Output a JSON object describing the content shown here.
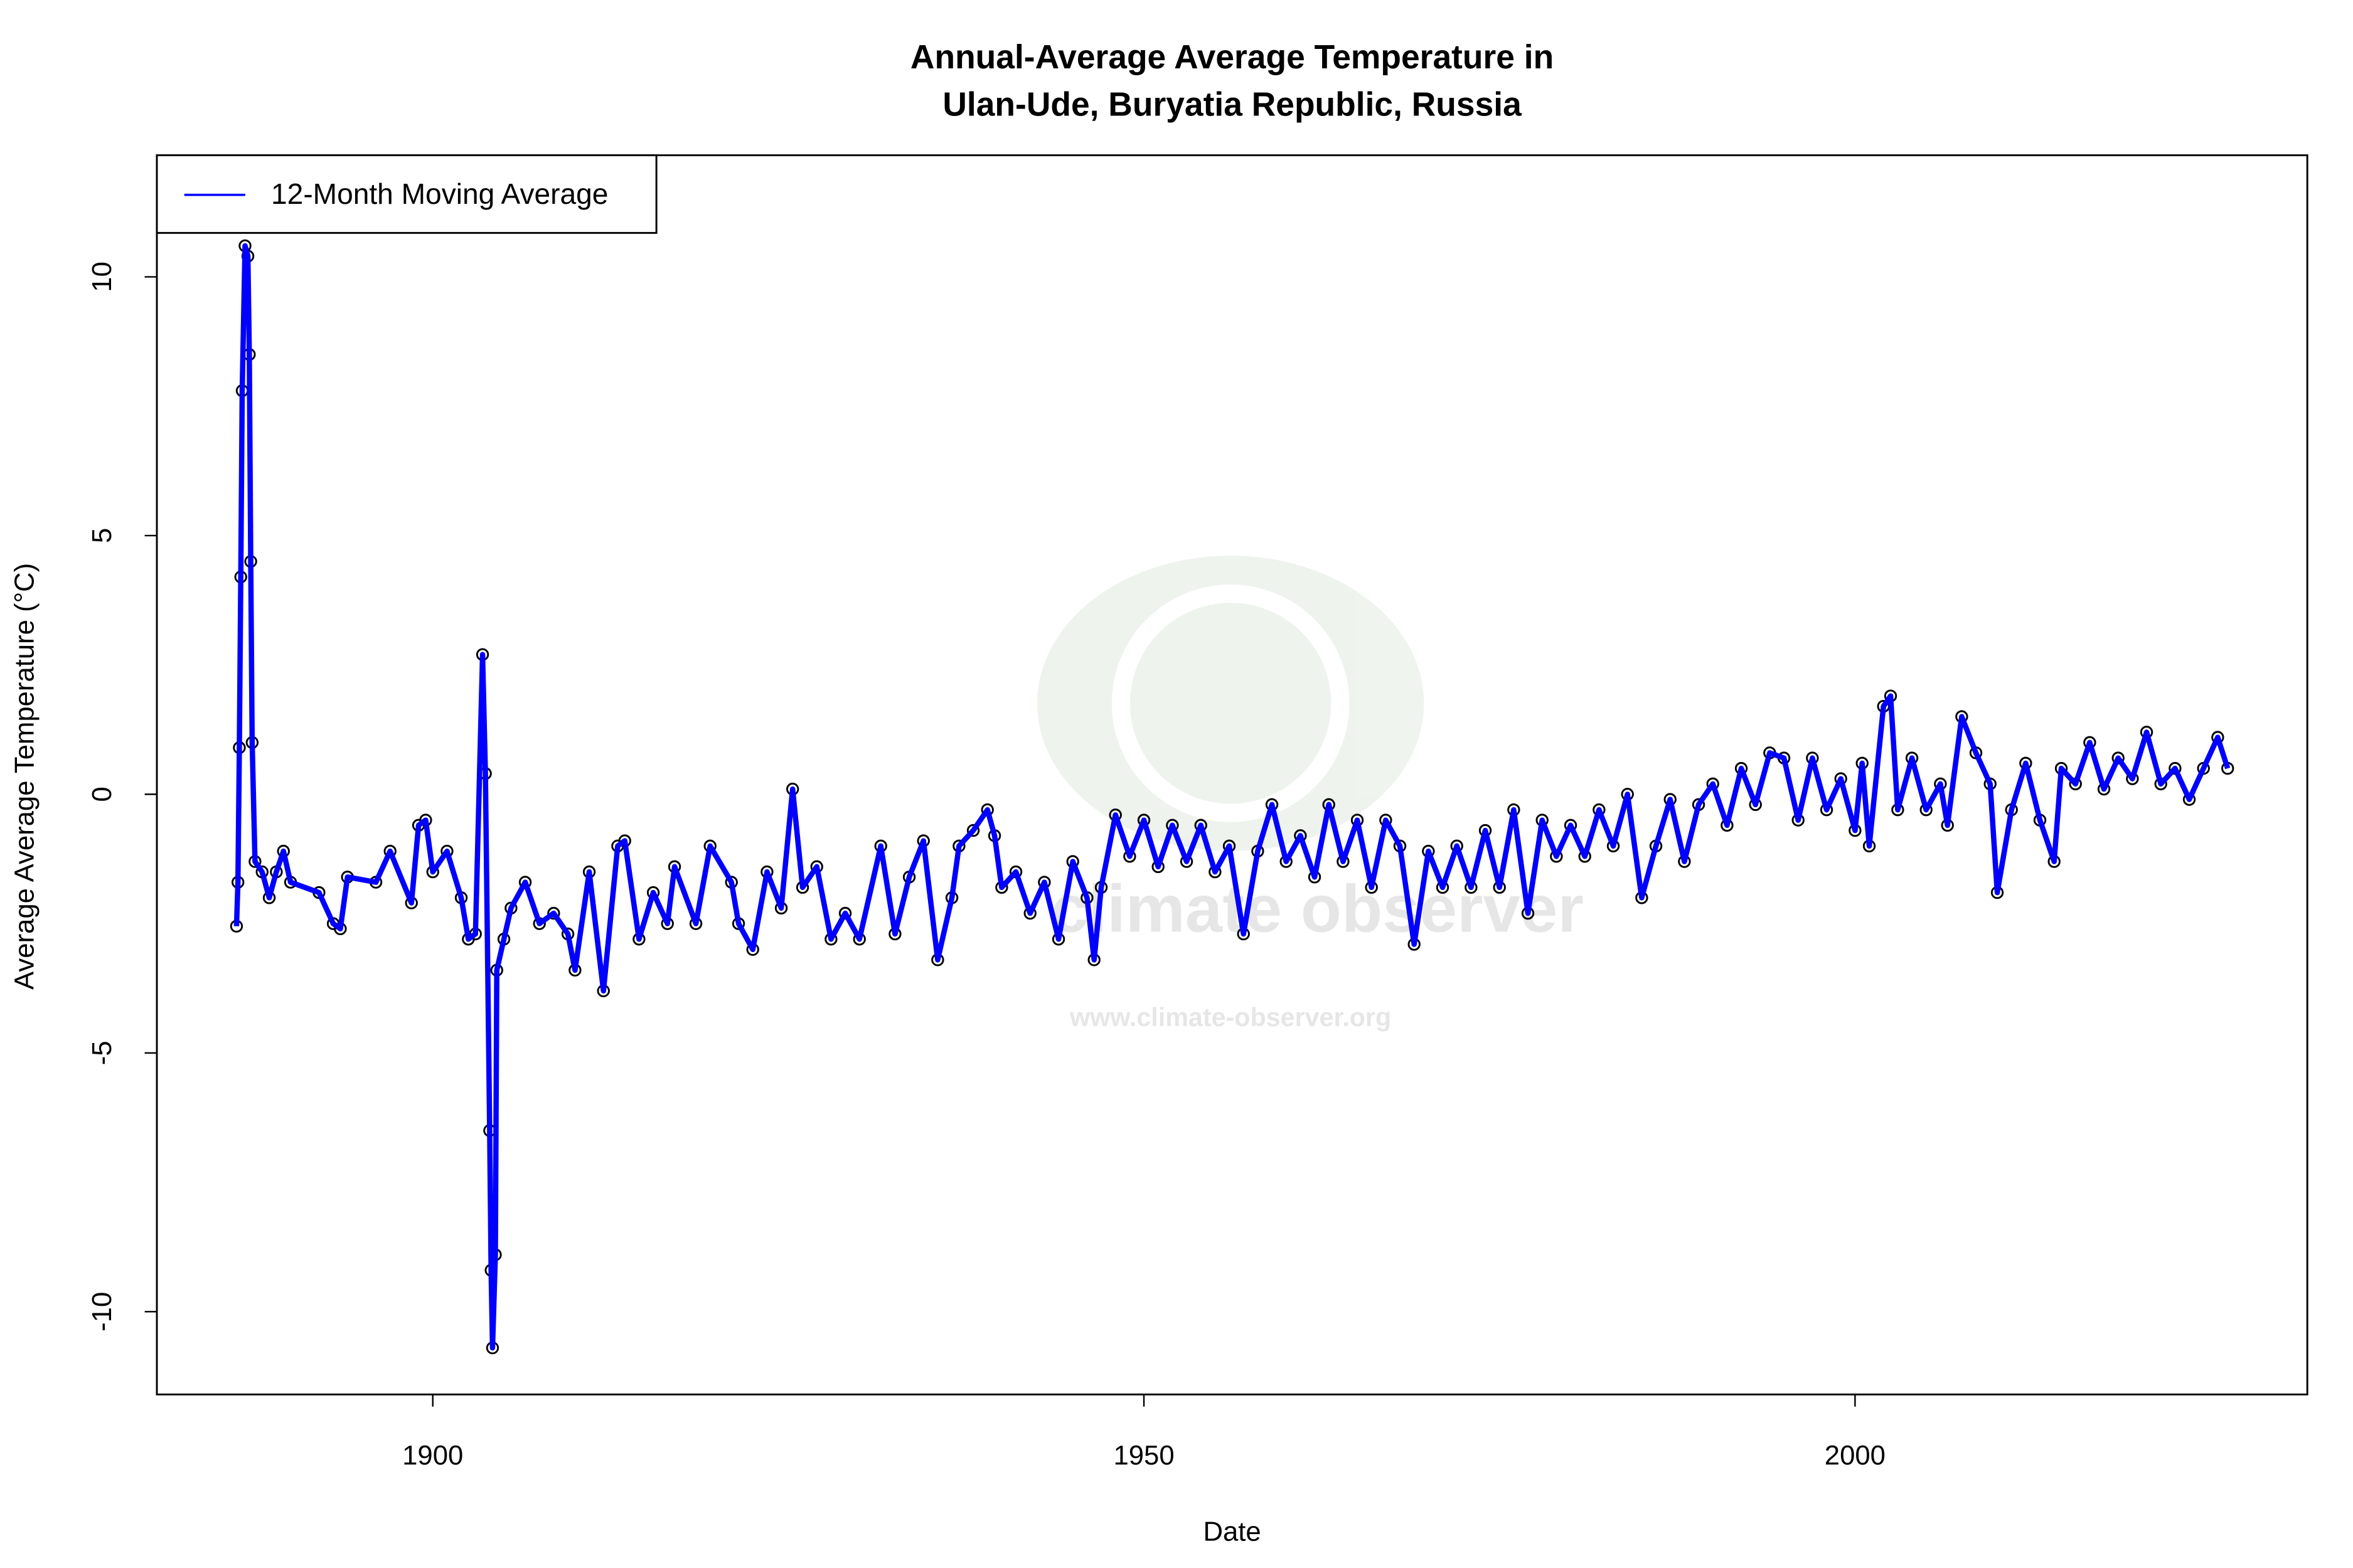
{
  "chart_data": {
    "type": "line",
    "title": [
      "Annual-Average Average Temperature in",
      "Ulan-Ude, Buryatia Republic, Russia"
    ],
    "x_label": "Date",
    "y_label": "Average Average Temperature (°C)",
    "watermark": {
      "name": "climate observer",
      "url": "www.climate-observer.org"
    },
    "legend": "top-left",
    "x": [
      1886.2,
      1886.3,
      1886.4,
      1886.5,
      1886.6,
      1886.8,
      1887.0,
      1887.1,
      1887.2,
      1887.3,
      1887.5,
      1888,
      1888.5,
      1889,
      1889.5,
      1890,
      1892,
      1893,
      1893.5,
      1894,
      1896,
      1897,
      1898.5,
      1899,
      1899.5,
      1900,
      1901,
      1902,
      1902.5,
      1903,
      1903.5,
      1903.7,
      1904.0,
      1904.1,
      1904.2,
      1904.4,
      1904.5,
      1905,
      1905.5,
      1906.5,
      1907.5,
      1908.5,
      1909.5,
      1910,
      1911,
      1912,
      1913,
      1913.5,
      1914.5,
      1915.5,
      1916.5,
      1917,
      1918.5,
      1919.5,
      1921,
      1921.5,
      1922.5,
      1923.5,
      1924.5,
      1925.3,
      1926,
      1927,
      1928,
      1929,
      1930,
      1931.5,
      1932.5,
      1933.5,
      1934.5,
      1935.5,
      1936.5,
      1937,
      1938,
      1939,
      1939.5,
      1940,
      1941,
      1942,
      1943,
      1944,
      1945,
      1946,
      1946.5,
      1947,
      1948,
      1949,
      1950,
      1951,
      1952,
      1953,
      1954,
      1955,
      1956,
      1957,
      1958,
      1959,
      1960,
      1961,
      1962,
      1963,
      1964,
      1965,
      1966,
      1967,
      1968,
      1969,
      1970,
      1971,
      1972,
      1973,
      1974,
      1975,
      1976,
      1977,
      1978,
      1979,
      1980,
      1981,
      1982,
      1983,
      1984,
      1985,
      1986,
      1987,
      1988,
      1989,
      1990,
      1991,
      1992,
      1993,
      1994,
      1995,
      1996,
      1997,
      1998,
      1999,
      2000,
      2000.5,
      2001,
      2002,
      2002.5,
      2003,
      2004,
      2005,
      2006,
      2006.5,
      2007.5,
      2008.5,
      2009.5,
      2010,
      2011,
      2012,
      2013,
      2014,
      2014.5,
      2015.5,
      2016.5,
      2017.5,
      2018.5,
      2019.5,
      2020.5,
      2021.5,
      2022.5,
      2023.5,
      2024.5,
      2025.5,
      2026.2
    ],
    "series": [
      {
        "name": "12-Month Moving Average",
        "color": "#0000ff",
        "marker_color": "#000000",
        "values": [
          -2.55,
          -1.7,
          0.9,
          4.2,
          7.8,
          10.6,
          10.4,
          8.5,
          4.5,
          1.0,
          -1.3,
          -1.5,
          -2.0,
          -1.5,
          -1.1,
          -1.7,
          -1.9,
          -2.5,
          -2.6,
          -1.6,
          -1.7,
          -1.1,
          -2.1,
          -0.6,
          -0.5,
          -1.5,
          -1.1,
          -2.0,
          -2.8,
          -2.7,
          2.7,
          0.4,
          -6.5,
          -9.2,
          -10.7,
          -8.9,
          -3.4,
          -2.8,
          -2.2,
          -1.7,
          -2.5,
          -2.3,
          -2.7,
          -3.4,
          -1.5,
          -3.8,
          -1.0,
          -0.9,
          -2.8,
          -1.9,
          -2.5,
          -1.4,
          -2.5,
          -1.0,
          -1.7,
          -2.5,
          -3.0,
          -1.5,
          -2.2,
          0.1,
          -1.8,
          -1.4,
          -2.8,
          -2.3,
          -2.8,
          -1.0,
          -2.7,
          -1.6,
          -0.9,
          -3.2,
          -2.0,
          -1.0,
          -0.7,
          -0.3,
          -0.8,
          -1.8,
          -1.5,
          -2.3,
          -1.7,
          -2.8,
          -1.3,
          -2.0,
          -3.2,
          -1.8,
          -0.4,
          -1.2,
          -0.5,
          -1.4,
          -0.6,
          -1.3,
          -0.6,
          -1.5,
          -1.0,
          -2.7,
          -1.1,
          -0.2,
          -1.3,
          -0.8,
          -1.6,
          -0.2,
          -1.3,
          -0.5,
          -1.8,
          -0.5,
          -1.0,
          -2.9,
          -1.1,
          -1.8,
          -1.0,
          -1.8,
          -0.7,
          -1.8,
          -0.3,
          -2.3,
          -0.5,
          -1.2,
          -0.6,
          -1.2,
          -0.3,
          -1.0,
          0.0,
          -2.0,
          -1.0,
          -0.1,
          -1.3,
          -0.2,
          0.2,
          -0.6,
          0.5,
          -0.2,
          0.8,
          0.7,
          -0.5,
          0.7,
          -0.3,
          0.3,
          -0.7,
          0.6,
          -1.0,
          1.7,
          1.9,
          -0.3,
          0.7,
          -0.3,
          0.2,
          -0.6,
          1.5,
          0.8,
          0.2,
          -1.9,
          -0.3,
          0.6,
          -0.5,
          -1.3,
          0.5,
          0.2,
          1.0,
          0.1,
          0.7,
          0.3,
          1.2,
          0.2,
          0.5,
          -0.1,
          0.5,
          1.1,
          0.5
        ]
      }
    ],
    "xlim": [
      1880.6,
      2031.8
    ],
    "ylim": [
      -11.6,
      12.35
    ],
    "xticks": [
      1900,
      1950,
      2000
    ],
    "yticks": [
      -10,
      -5,
      0,
      5,
      10
    ]
  }
}
